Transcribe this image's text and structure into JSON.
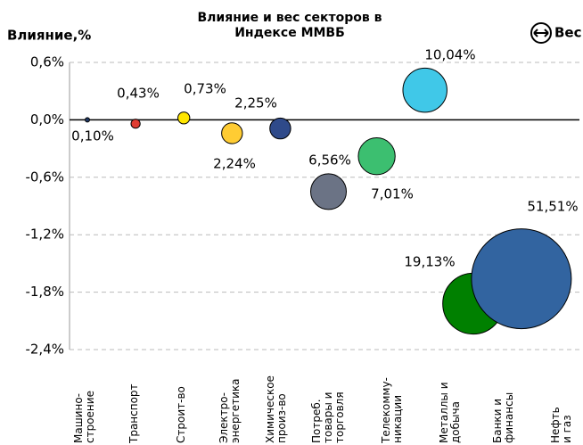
{
  "chart_data": {
    "type": "bubble",
    "title": "Влияние и вес секторов в Индексе ММВБ",
    "y_label": "Влияние,%",
    "size_legend": "Вес",
    "categories": [
      "Машино-\nстроение",
      "Транспорт",
      "Строит-во",
      "Электро-\nэнергетика",
      "Химическое\nпроиз-во",
      "Потреб.\nтовары и\nторговля",
      "Телекомму-\nникации",
      "Металлы и\nдобыча",
      "Банки и\nфинансы",
      "Нефть\nи газ"
    ],
    "values": [
      0.0,
      -0.04,
      0.02,
      -0.14,
      -0.09,
      -0.75,
      -0.38,
      0.31,
      -1.92,
      -1.66
    ],
    "sizes": [
      0.1,
      0.43,
      0.73,
      2.24,
      2.25,
      6.56,
      7.01,
      10.04,
      19.13,
      51.51
    ],
    "size_labels": [
      "0,10%",
      "0,43%",
      "0,73%",
      "2,24%",
      "2,25%",
      "6,56%",
      "7,01%",
      "10,04%",
      "19,13%",
      "51,51%"
    ],
    "colors": [
      "#1f3864",
      "#e03c31",
      "#ffe600",
      "#ffcc33",
      "#2f4a8a",
      "#6b7385",
      "#3cbf70",
      "#40c8e8",
      "#008000",
      "#3264a0"
    ],
    "ylim": [
      -2.4,
      0.6
    ],
    "yticks": [
      {
        "value": -2.4,
        "label": "-2,4%"
      },
      {
        "value": -1.8,
        "label": "-1,8%"
      },
      {
        "value": -1.2,
        "label": "-1,2%"
      },
      {
        "value": -0.6,
        "label": "-0,6%"
      },
      {
        "value": 0,
        "label": "0,0%"
      },
      {
        "value": 0.6,
        "label": "0,6%"
      }
    ],
    "grid": true
  }
}
